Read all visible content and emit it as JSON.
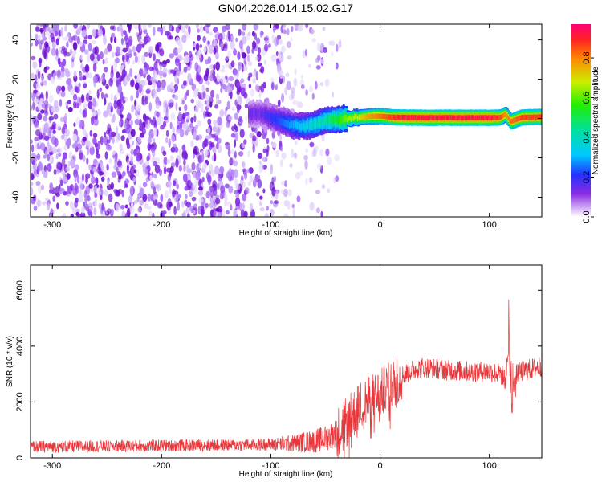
{
  "title": "GN04.2026.014.15.02.G17",
  "chart_data": [
    {
      "type": "heatmap",
      "xlabel": "Height of straight line (km)",
      "ylabel": "Frequency (Hz)",
      "xlim": [
        -320,
        148
      ],
      "ylim": [
        -50,
        48
      ],
      "x_ticks": [
        -300,
        -200,
        -100,
        0,
        100
      ],
      "y_ticks": [
        -40,
        -20,
        0,
        20,
        40
      ],
      "colorbar": {
        "label": "Normalized spectral amplitude",
        "range": [
          0.0,
          0.97
        ],
        "ticks": [
          0.0,
          0.2,
          0.4,
          0.6,
          0.8
        ]
      },
      "ridge": {
        "x": [
          -110,
          -100,
          -90,
          -80,
          -70,
          -60,
          -50,
          -40,
          -30,
          -20,
          -10,
          0,
          10,
          20,
          40,
          60,
          80,
          100,
          110,
          115,
          120,
          130,
          148
        ],
        "y": [
          2.5,
          0.5,
          -1.5,
          -3.5,
          -4.0,
          -3.0,
          -1.0,
          -0.5,
          0.0,
          0.5,
          1.0,
          1.2,
          0.7,
          0.5,
          0.4,
          0.4,
          0.4,
          0.4,
          0.5,
          2.0,
          -1.5,
          0.6,
          0.8
        ],
        "amp": [
          0.15,
          0.2,
          0.25,
          0.3,
          0.35,
          0.4,
          0.45,
          0.55,
          0.65,
          0.7,
          0.8,
          0.85,
          0.9,
          0.95,
          0.95,
          0.95,
          0.95,
          0.95,
          0.9,
          0.8,
          0.85,
          0.9,
          0.9
        ]
      }
    },
    {
      "type": "line",
      "xlabel": "Height of straight line (km)",
      "ylabel": "SNR (10 * v/v)",
      "xlim": [
        -320,
        148
      ],
      "ylim": [
        0,
        6900
      ],
      "x_ticks": [
        -300,
        -200,
        -100,
        0,
        100
      ],
      "y_ticks": [
        0,
        2000,
        4000,
        6000
      ],
      "series": [
        {
          "color": "#e8363a",
          "x": [
            -320,
            -300,
            -250,
            -200,
            -150,
            -100,
            -80,
            -60,
            -50,
            -40,
            -30,
            -20,
            -10,
            0,
            10,
            20,
            30,
            40,
            60,
            80,
            100,
            110,
            115,
            118,
            120,
            122,
            125,
            130,
            140,
            148
          ],
          "y": [
            400,
            400,
            420,
            440,
            450,
            480,
            520,
            600,
            700,
            900,
            1300,
            1800,
            2100,
            2300,
            2600,
            2950,
            3150,
            3250,
            3150,
            3100,
            3100,
            3000,
            2800,
            4200,
            1400,
            2500,
            3000,
            3100,
            3200,
            3300
          ]
        }
      ]
    }
  ]
}
